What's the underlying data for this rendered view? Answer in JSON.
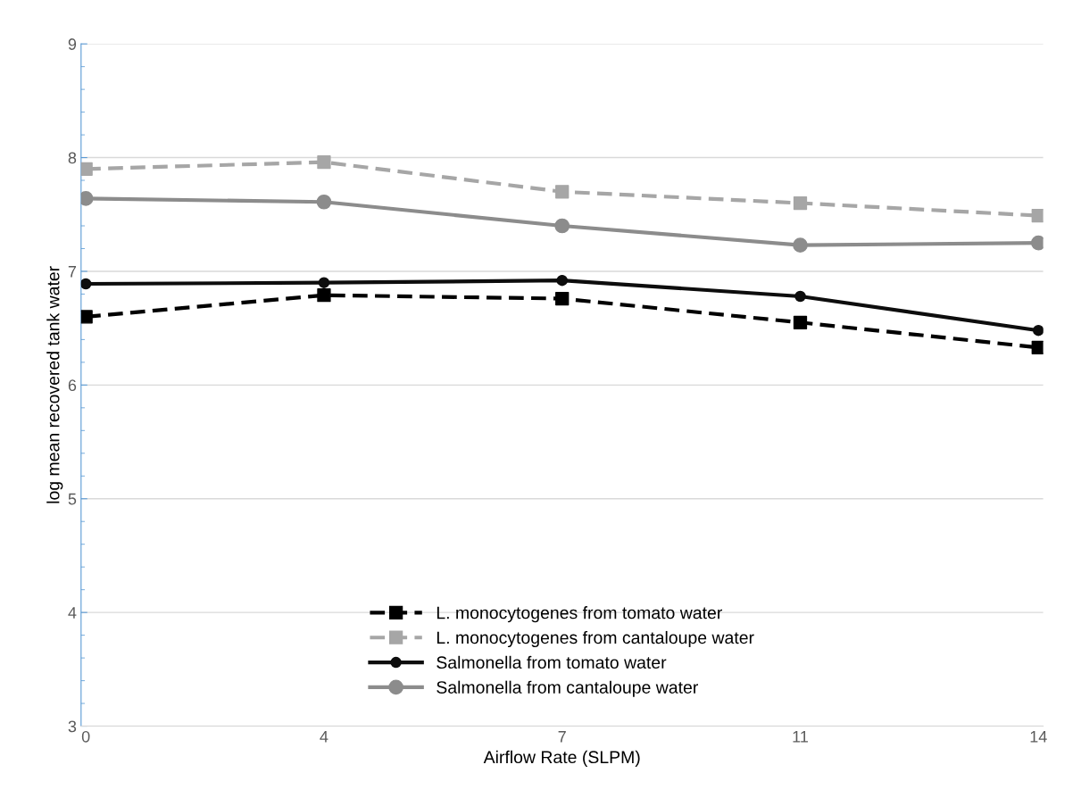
{
  "chart_data": {
    "type": "line",
    "xlabel": "Airflow Rate (SLPM)",
    "ylabel": "log mean recovered tank water",
    "categories": [
      "0",
      "4",
      "7",
      "11",
      "14"
    ],
    "ylim": [
      3,
      9
    ],
    "yticks": [
      3,
      4,
      5,
      6,
      7,
      8,
      9
    ],
    "grid": "y",
    "legend": "bottom",
    "series": [
      {
        "name": "L. monocytogenes from tomato water",
        "color": "#000000",
        "marker": "square",
        "line_style": "dashed",
        "values": [
          6.6,
          6.79,
          6.76,
          6.55,
          6.33
        ]
      },
      {
        "name": "L. monocytogenes from cantaloupe water",
        "color": "#a6a6a6",
        "marker": "square",
        "line_style": "dashed",
        "values": [
          7.9,
          7.96,
          7.7,
          7.6,
          7.49
        ]
      },
      {
        "name": "Salmonella from tomato water",
        "color": "#0d0d0d",
        "marker": "circle",
        "line_style": "solid",
        "values": [
          6.89,
          6.9,
          6.92,
          6.78,
          6.48
        ]
      },
      {
        "name": "Salmonella from cantaloupe water",
        "color": "#8c8c8c",
        "marker": "circle",
        "line_style": "solid",
        "values": [
          7.64,
          7.61,
          7.4,
          7.23,
          7.25
        ]
      }
    ]
  }
}
